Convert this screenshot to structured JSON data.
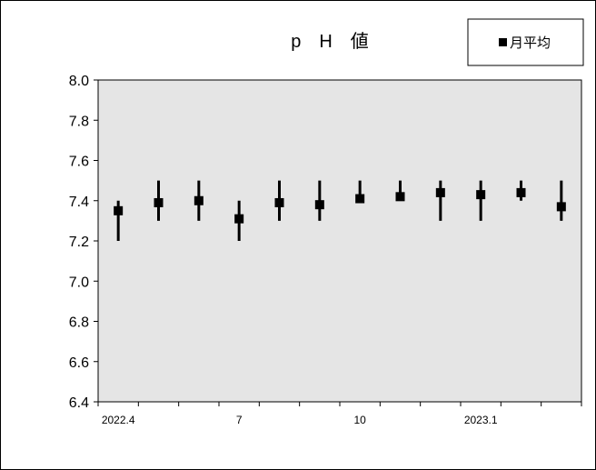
{
  "chart_data": {
    "type": "scatter",
    "title": "p　H　値",
    "legend": {
      "label": "月平均",
      "position": "top-right"
    },
    "xlabel": "",
    "ylabel": "",
    "ylim": [
      6.4,
      8.0
    ],
    "yticks": [
      "8.0",
      "7.8",
      "7.6",
      "7.4",
      "7.2",
      "7.0",
      "6.8",
      "6.6",
      "6.4"
    ],
    "x_tick_labels": [
      {
        "label": "2022.4",
        "index": 0
      },
      {
        "label": "7",
        "index": 3
      },
      {
        "label": "10",
        "index": 6
      },
      {
        "label": "2023.1",
        "index": 9
      }
    ],
    "grid": false,
    "series": [
      {
        "name": "月平均",
        "points": [
          {
            "month": "2022.4",
            "mean": 7.35,
            "min": 7.2,
            "max": 7.4
          },
          {
            "month": "2022.5",
            "mean": 7.39,
            "min": 7.3,
            "max": 7.5
          },
          {
            "month": "2022.6",
            "mean": 7.4,
            "min": 7.3,
            "max": 7.5
          },
          {
            "month": "2022.7",
            "mean": 7.31,
            "min": 7.2,
            "max": 7.4
          },
          {
            "month": "2022.8",
            "mean": 7.39,
            "min": 7.3,
            "max": 7.5
          },
          {
            "month": "2022.9",
            "mean": 7.38,
            "min": 7.3,
            "max": 7.5
          },
          {
            "month": "2022.10",
            "mean": 7.41,
            "min": 7.4,
            "max": 7.5
          },
          {
            "month": "2022.11",
            "mean": 7.42,
            "min": 7.4,
            "max": 7.5
          },
          {
            "month": "2022.12",
            "mean": 7.44,
            "min": 7.3,
            "max": 7.5
          },
          {
            "month": "2023.1",
            "mean": 7.43,
            "min": 7.3,
            "max": 7.5
          },
          {
            "month": "2023.2",
            "mean": 7.44,
            "min": 7.4,
            "max": 7.5
          },
          {
            "month": "2023.3",
            "mean": 7.37,
            "min": 7.3,
            "max": 7.5
          }
        ]
      }
    ],
    "colors": {
      "plot_background": "#e5e5e5",
      "marker": "#000000"
    }
  }
}
